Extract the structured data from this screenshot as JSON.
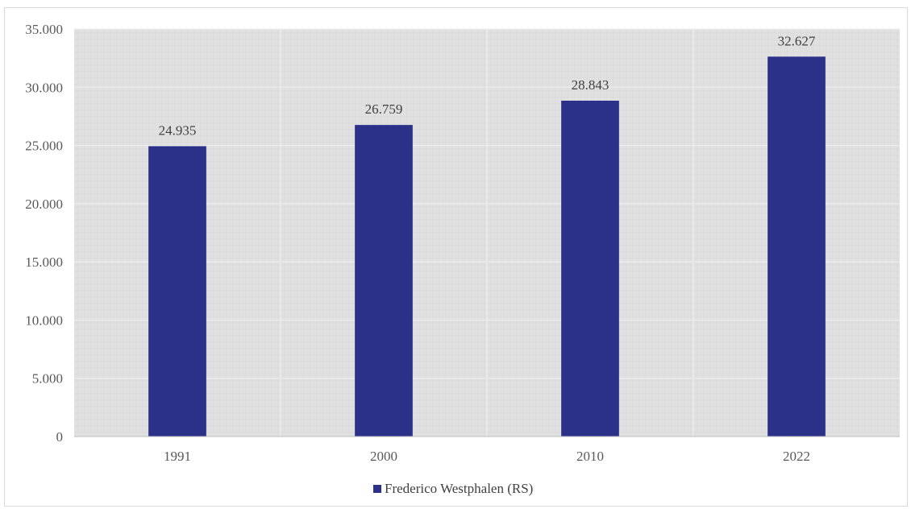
{
  "chart_data": {
    "type": "bar",
    "categories": [
      "1991",
      "2000",
      "2010",
      "2022"
    ],
    "series": [
      {
        "name": "Frederico Westphalen (RS)",
        "values": [
          24935,
          26759,
          28843,
          32627
        ]
      }
    ],
    "data_labels": [
      "24.935",
      "26.759",
      "28.843",
      "32.627"
    ],
    "yticks": [
      "0",
      "5.000",
      "10.000",
      "15.000",
      "20.000",
      "25.000",
      "30.000",
      "35.000"
    ],
    "ytick_values": [
      0,
      5000,
      10000,
      15000,
      20000,
      25000,
      30000,
      35000
    ],
    "ylim": [
      0,
      35000
    ],
    "grid": true,
    "legend_position": "bottom",
    "bar_color": "#2b3189",
    "plot_background": "#e0e0e0",
    "gridline_color": "#ededed"
  }
}
